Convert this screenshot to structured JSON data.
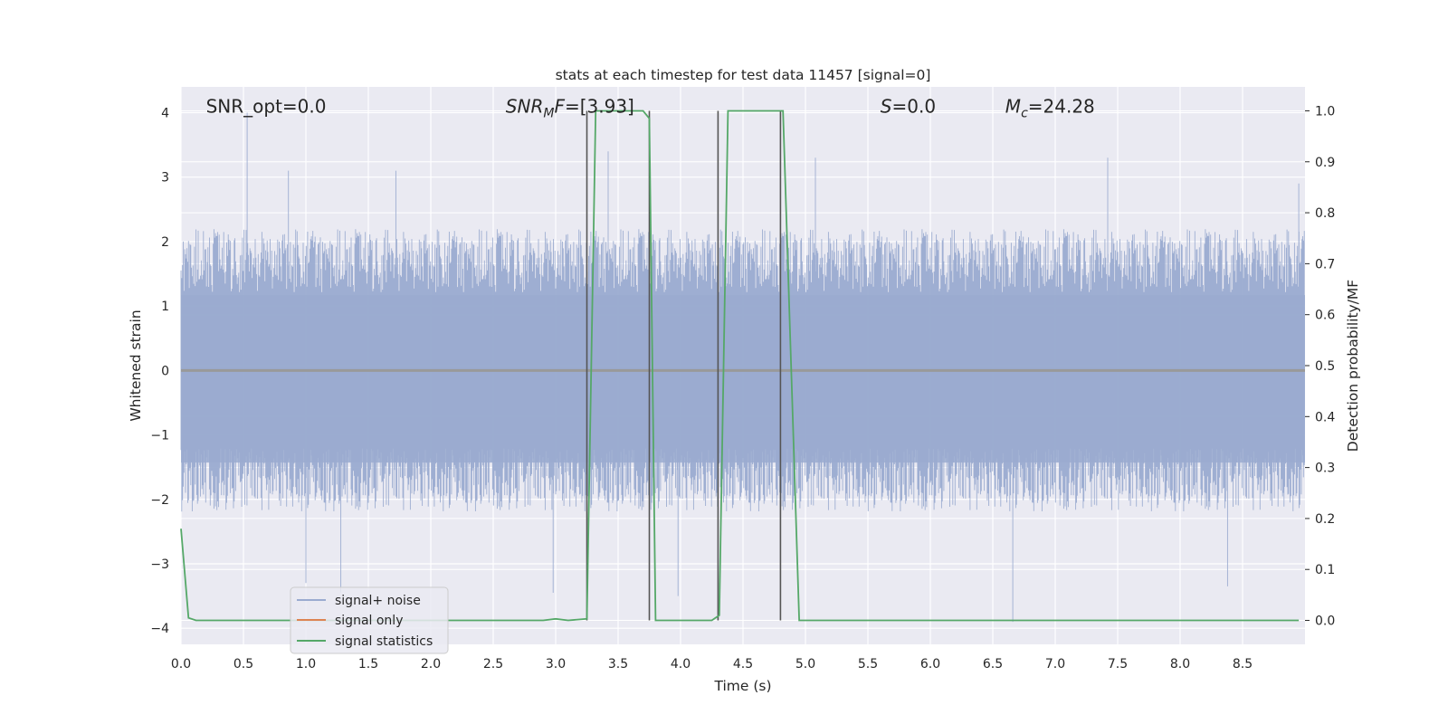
{
  "chart_data": {
    "type": "line",
    "title": "stats at each timestep for test data 11457 [signal=0]",
    "xlabel": "Time (s)",
    "ylabel": "Whitened strain",
    "ylabel_right": "Detection probability/MF",
    "xlim": [
      0.0,
      9.0
    ],
    "ylim": [
      -4.25,
      4.4
    ],
    "ylim_right": [
      -0.047,
      1.047
    ],
    "x_ticks": [
      0.0,
      0.5,
      1.0,
      1.5,
      2.0,
      2.5,
      3.0,
      3.5,
      4.0,
      4.5,
      5.0,
      5.5,
      6.0,
      6.5,
      7.0,
      7.5,
      8.0,
      8.5
    ],
    "x_tick_labels": [
      "0.0",
      "0.5",
      "1.0",
      "1.5",
      "2.0",
      "2.5",
      "3.0",
      "3.5",
      "4.0",
      "4.5",
      "5.0",
      "5.5",
      "6.0",
      "6.5",
      "7.0",
      "7.5",
      "8.0",
      "8.5"
    ],
    "y_ticks": [
      -4,
      -3,
      -2,
      -1,
      0,
      1,
      2,
      3,
      4
    ],
    "y_tick_labels": [
      "−4",
      "−3",
      "−2",
      "−1",
      "0",
      "1",
      "2",
      "3",
      "4"
    ],
    "y_ticks_right": [
      0.0,
      0.1,
      0.2,
      0.3,
      0.4,
      0.5,
      0.6,
      0.7,
      0.8,
      0.9,
      1.0
    ],
    "y_tick_labels_right": [
      "0.0",
      "0.1",
      "0.2",
      "0.3",
      "0.4",
      "0.5",
      "0.6",
      "0.7",
      "0.8",
      "0.9",
      "1.0"
    ],
    "grid": true,
    "legend_placement": "lower-left",
    "annotations": [
      {
        "text": "SNR_opt=0.0",
        "x": 0.2,
        "y": 4.1
      },
      {
        "text": "SNR_MF=[3.93]",
        "x": 2.6,
        "y": 4.1
      },
      {
        "text": "S=0.0",
        "x": 5.6,
        "y": 4.1
      },
      {
        "text": "M_c=24.28",
        "x": 6.6,
        "y": 4.1
      }
    ],
    "series": [
      {
        "name": "signal+ noise",
        "axis": "left",
        "color": "#9aabd0",
        "noise_envelope": {
          "typical_amplitude": 2.2,
          "peak_max": 4.0,
          "peak_min": -3.9
        },
        "spikes": [
          [
            0.53,
            4.0
          ],
          [
            0.86,
            3.1
          ],
          [
            1.72,
            3.1
          ],
          [
            3.42,
            3.4
          ],
          [
            5.08,
            3.3
          ],
          [
            7.42,
            3.3
          ],
          [
            8.95,
            2.9
          ],
          [
            1.0,
            -3.3
          ],
          [
            1.28,
            -3.45
          ],
          [
            2.98,
            -3.45
          ],
          [
            3.98,
            -3.5
          ],
          [
            6.66,
            -3.9
          ],
          [
            8.38,
            -3.35
          ]
        ]
      },
      {
        "name": "signal only",
        "axis": "left",
        "color": "#dd8452",
        "x": [
          0.0,
          9.0
        ],
        "y": [
          0.0,
          0.0
        ]
      },
      {
        "name": "signal statistics",
        "axis": "right",
        "color": "#55a868",
        "x": [
          0.0,
          0.06,
          0.12,
          0.5,
          1.0,
          2.0,
          2.5,
          2.9,
          3.0,
          3.1,
          3.25,
          3.32,
          3.55,
          3.7,
          3.75,
          3.8,
          4.0,
          4.25,
          4.31,
          4.38,
          4.6,
          4.82,
          4.95,
          5.5,
          6.0,
          7.0,
          8.0,
          8.95
        ],
        "y": [
          0.18,
          0.005,
          0.0,
          0.0,
          0.0,
          0.0,
          0.0,
          0.0,
          0.003,
          0.0,
          0.003,
          1.0,
          1.0,
          1.0,
          0.985,
          0.0,
          0.0,
          0.0,
          0.01,
          1.0,
          1.0,
          1.0,
          0.0,
          0.0,
          0.0,
          0.0,
          0.0,
          0.0
        ]
      }
    ],
    "vertical_markers": [
      3.25,
      3.75,
      4.3,
      4.8
    ],
    "legend_entries": [
      "signal+ noise",
      "signal only",
      "signal statistics"
    ]
  }
}
